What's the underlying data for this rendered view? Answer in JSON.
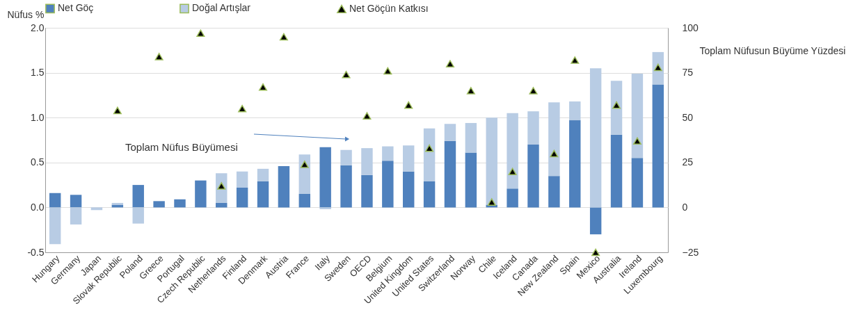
{
  "chart_data": {
    "type": "bar",
    "stacked": true,
    "categories": [
      "Hungary",
      "Germany",
      "Japan",
      "Slovak Republic",
      "Poland",
      "Greece",
      "Portugal",
      "Czech Republic",
      "Netherlands",
      "Finland",
      "Denmark",
      "Austria",
      "France",
      "Italy",
      "Sweden",
      "OECD",
      "Belgium",
      "United Kingdom",
      "United States",
      "Switzerland",
      "Norway",
      "Chile",
      "Iceland",
      "Canada",
      "New Zealand",
      "Spain",
      "Mexico",
      "Australia",
      "Ireland",
      "Luxembourg"
    ],
    "series": [
      {
        "name": "Net Göç",
        "color": "#4f81bd",
        "values": [
          0.16,
          0.14,
          0.0,
          0.03,
          0.25,
          0.07,
          0.09,
          0.3,
          0.05,
          0.22,
          0.29,
          0.46,
          0.15,
          0.67,
          0.47,
          0.36,
          0.52,
          0.4,
          0.29,
          0.74,
          0.61,
          0.03,
          0.21,
          0.7,
          0.35,
          0.97,
          -0.3,
          0.81,
          0.55,
          1.37
        ]
      },
      {
        "name": "Doğal Artışlar",
        "color": "#b8cce4",
        "values": [
          -0.41,
          -0.19,
          -0.03,
          0.02,
          -0.18,
          0.0,
          0.0,
          0.0,
          0.33,
          0.18,
          0.14,
          0.0,
          0.44,
          -0.02,
          0.17,
          0.3,
          0.16,
          0.29,
          0.59,
          0.19,
          0.33,
          0.97,
          0.84,
          0.37,
          0.82,
          0.21,
          1.55,
          0.6,
          0.94,
          0.36
        ]
      },
      {
        "name": "Net Göçün Katkısı",
        "type": "scatter",
        "axis": "y2",
        "marker": "triangle",
        "color": "#000000",
        "values": [
          null,
          null,
          null,
          54,
          null,
          84,
          null,
          97,
          12,
          55,
          67,
          95,
          24,
          null,
          74,
          51,
          76,
          57,
          33,
          80,
          65,
          3,
          20,
          65,
          30,
          82,
          -25,
          57,
          37,
          78
        ]
      }
    ],
    "ylabel": "Nüfus %",
    "y2label": "Toplam Nüfusun Büyüme Yüzdesi",
    "ylim": [
      -0.5,
      2.0
    ],
    "yticks": [
      {
        "value": -0.5,
        "label": "-0.5"
      },
      {
        "value": 0,
        "label": "0.0"
      },
      {
        "value": 0.5,
        "label": "0.5"
      },
      {
        "value": 1,
        "label": "1.0"
      },
      {
        "value": 1.5,
        "label": "1.5"
      },
      {
        "value": 2,
        "label": "2.0"
      }
    ],
    "y2lim": [
      -25,
      100
    ],
    "y2ticks": [
      -25,
      0,
      25,
      50,
      75,
      100
    ],
    "annotations": [
      "Toplam Nüfus Büyümesi"
    ],
    "grid": "y",
    "legend": "top"
  }
}
